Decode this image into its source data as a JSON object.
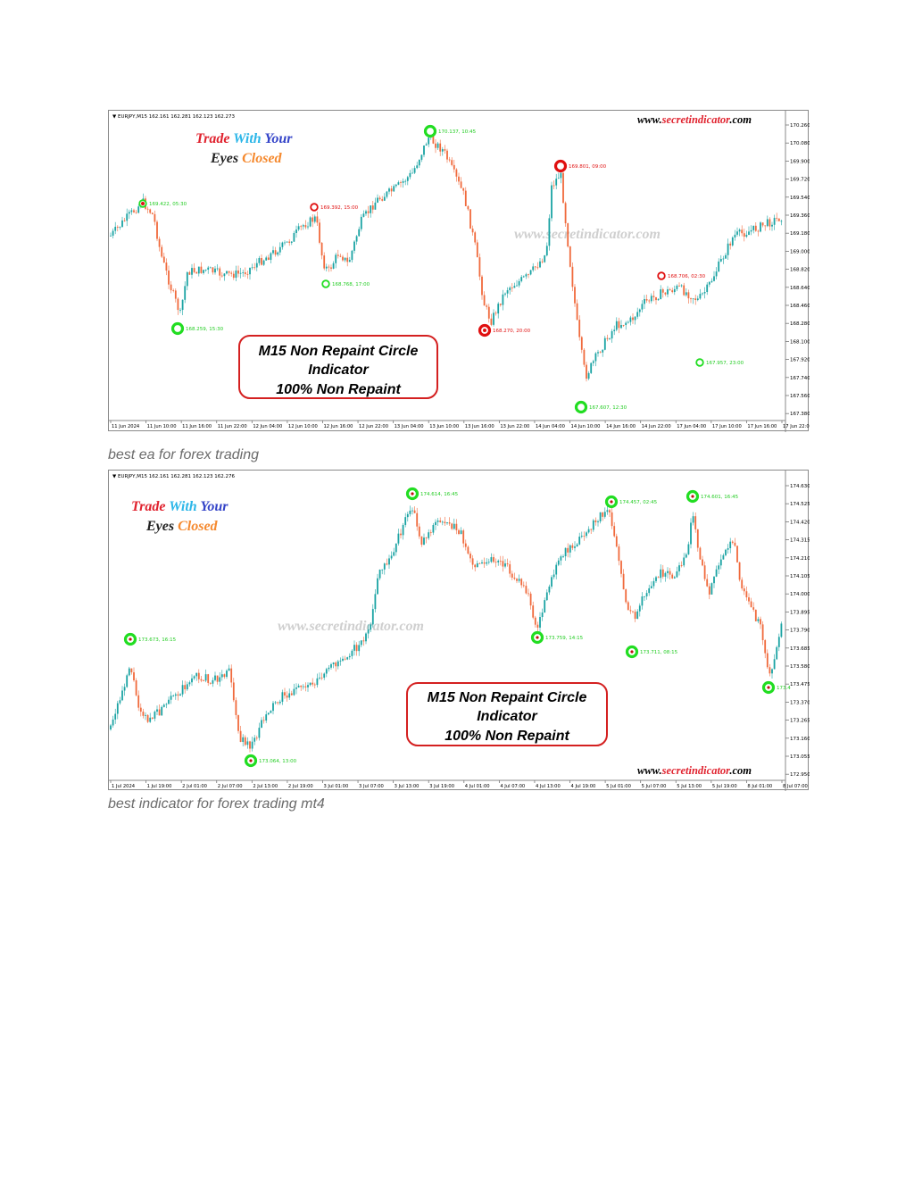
{
  "colors": {
    "bull": "#1aa3a3",
    "bear": "#f06a3c",
    "buy_circle": "#22dd22",
    "sell_circle": "#e01010",
    "label_buy": "#22cc22",
    "label_sell": "#e01010",
    "promo_red": "#e0222e",
    "promo_blue": "#2bb6e8",
    "promo_navy": "#3343c8",
    "promo_orange": "#f5892e"
  },
  "figures": [
    {
      "header": "▼ EURJPY,M15  162.161 162.281 162.123 162.273",
      "site": {
        "prefix": "www.",
        "mid": "secretindicator",
        "suffix": ".com"
      },
      "watermark": "www.secretindicator.com",
      "promo": {
        "word1": "Trade",
        "word2": "With",
        "word3": "Your",
        "word4": "Eyes",
        "word5": "Closed"
      },
      "box": {
        "line1": "M15 Non Repaint Circle",
        "line2": "Indicator",
        "line3": "100% Non Repaint"
      },
      "yticks": [
        "170.260",
        "170.080",
        "169.900",
        "169.720",
        "169.540",
        "169.360",
        "169.180",
        "169.000",
        "168.820",
        "168.640",
        "168.460",
        "168.280",
        "168.100",
        "167.920",
        "167.740",
        "167.560",
        "167.380"
      ],
      "xticks": [
        "11 Jun 2024",
        "11 Jun 10:00",
        "11 Jun 16:00",
        "11 Jun 22:00",
        "12 Jun 04:00",
        "12 Jun 10:00",
        "12 Jun 16:00",
        "12 Jun 22:00",
        "13 Jun 04:00",
        "13 Jun 10:00",
        "13 Jun 16:00",
        "13 Jun 22:00",
        "14 Jun 04:00",
        "14 Jun 10:00",
        "14 Jun 16:00",
        "14 Jun 22:00",
        "17 Jun 04:00",
        "17 Jun 10:00",
        "17 Jun 16:00",
        "17 Jun 22:00"
      ],
      "signals": [
        {
          "type": "buy",
          "label": "169.422, 05:30"
        },
        {
          "type": "buy",
          "label": "168.259, 15:30"
        },
        {
          "type": "sell",
          "label": "169.392, 15:00"
        },
        {
          "type": "buy",
          "label": "168.768, 17:00"
        },
        {
          "type": "buy",
          "label": "170.137, 10:45"
        },
        {
          "type": "sell",
          "label": "168.270, 20:00"
        },
        {
          "type": "sell",
          "label": "169.801, 09:00"
        },
        {
          "type": "buy",
          "label": "167.607, 12:30"
        },
        {
          "type": "sell",
          "label": "168.706, 02:30"
        },
        {
          "type": "buy",
          "label": "167.957, 23:00"
        }
      ]
    },
    {
      "header": "▼ EURJPY,M15  162.161 162.281 162.123 162.276",
      "site": {
        "prefix": "www.",
        "mid": "secretindicator",
        "suffix": ".com"
      },
      "watermark": "www.secretindicator.com",
      "promo": {
        "word1": "Trade",
        "word2": "With",
        "word3": "Your",
        "word4": "Eyes",
        "word5": "Closed"
      },
      "box": {
        "line1": "M15 Non Repaint Circle",
        "line2": "Indicator",
        "line3": "100% Non Repaint"
      },
      "yticks": [
        "174.630",
        "174.525",
        "174.420",
        "174.315",
        "174.210",
        "174.105",
        "174.000",
        "173.895",
        "173.790",
        "173.685",
        "173.580",
        "173.475",
        "173.370",
        "173.265",
        "173.160",
        "173.055",
        "172.950"
      ],
      "xticks": [
        "1 Jul 2024",
        "1 Jul 19:00",
        "2 Jul 01:00",
        "2 Jul 07:00",
        "2 Jul 13:00",
        "2 Jul 19:00",
        "3 Jul 01:00",
        "3 Jul 07:00",
        "3 Jul 13:00",
        "3 Jul 19:00",
        "4 Jul 01:00",
        "4 Jul 07:00",
        "4 Jul 13:00",
        "4 Jul 19:00",
        "5 Jul 01:00",
        "5 Jul 07:00",
        "5 Jul 13:00",
        "5 Jul 19:00",
        "8 Jul 01:00",
        "8 Jul 07:00"
      ],
      "signals": [
        {
          "type": "buy",
          "label": "173.673, 16:15"
        },
        {
          "type": "buy",
          "label": "173.064, 13:00"
        },
        {
          "type": "buy",
          "label": "174.614, 16:45"
        },
        {
          "type": "buy",
          "label": "173.759, 14:15"
        },
        {
          "type": "buy",
          "label": "174.457, 02:45"
        },
        {
          "type": "buy",
          "label": "173.711, 08:15"
        },
        {
          "type": "buy",
          "label": "174.601, 16:45"
        },
        {
          "type": "buy",
          "label": "173.4"
        }
      ]
    }
  ],
  "captions": [
    "best ea for forex trading",
    "best indicator for forex trading mt4"
  ]
}
